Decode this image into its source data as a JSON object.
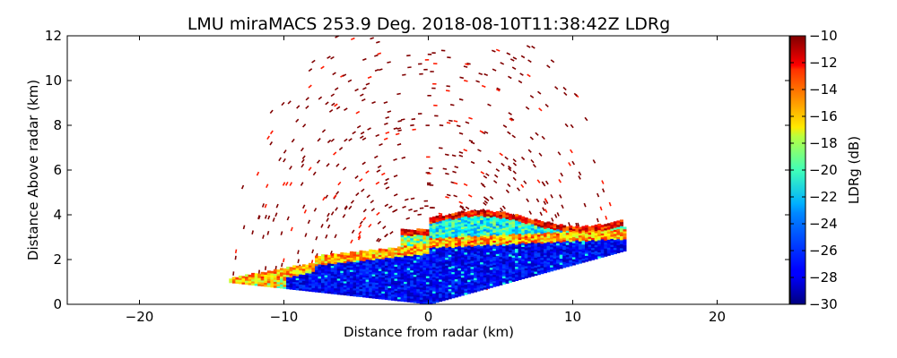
{
  "chart_data": {
    "type": "heatmap",
    "title": "LMU miraMACS 253.9 Deg. 2018-08-10T11:38:42Z  LDRg",
    "xlabel": "Distance from radar (km)",
    "ylabel": "Distance Above radar  (km)",
    "xlim": [
      -25,
      25
    ],
    "ylim": [
      0,
      12
    ],
    "xticks": [
      -20,
      -10,
      0,
      10,
      20
    ],
    "yticks": [
      0,
      2,
      4,
      6,
      8,
      10,
      12
    ],
    "xtick_labels": [
      "−20",
      "−10",
      "0",
      "10",
      "20"
    ],
    "ytick_labels": [
      "0",
      "2",
      "4",
      "6",
      "8",
      "10",
      "12"
    ],
    "colorbar": {
      "label": "LDRg (dB)",
      "range": [
        -30,
        -10
      ],
      "ticks": [
        -30,
        -28,
        -26,
        -24,
        -22,
        -20,
        -18,
        -16,
        -14,
        -12,
        -10
      ],
      "tick_labels": [
        "−30",
        "−28",
        "−26",
        "−24",
        "−22",
        "−20",
        "−18",
        "−16",
        "−14",
        "−12",
        "−10"
      ],
      "colormap": "jet"
    },
    "scan": {
      "max_range_km": 13.9,
      "left_edge_elev_deg": 176,
      "right_edge_elev_deg": 10,
      "regions": [
        {
          "name": "low-LDR rain below melting layer",
          "ldr": -29,
          "x": [
            -10,
            13
          ],
          "y": [
            0,
            2.8
          ]
        },
        {
          "name": "melting layer bright band",
          "ldr": -15,
          "x": [
            -14,
            13.5
          ],
          "y": [
            0.6,
            3.1
          ]
        },
        {
          "name": "cloud above melting layer",
          "ldr": -22,
          "x": [
            0,
            13.5
          ],
          "y": [
            3.0,
            4.3
          ]
        },
        {
          "name": "sparse high-LDR noise",
          "ldr": -10,
          "x": [
            -13.5,
            13
          ],
          "y": [
            0,
            12
          ]
        }
      ]
    }
  },
  "colors": {
    "background": "#ffffff",
    "axes": "#000000"
  }
}
